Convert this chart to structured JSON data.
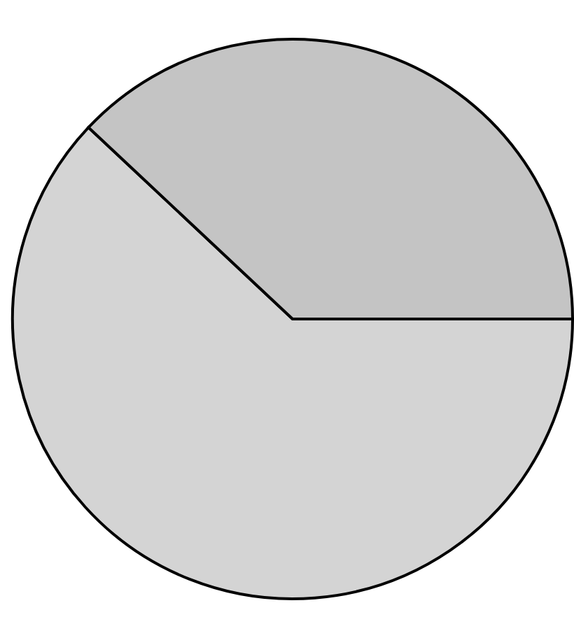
{
  "chart_data": {
    "type": "pie",
    "categories": [
      null,
      null
    ],
    "values": [
      62,
      38
    ],
    "colors": [
      "#d4d4d4",
      "#c4c4c4"
    ]
  }
}
